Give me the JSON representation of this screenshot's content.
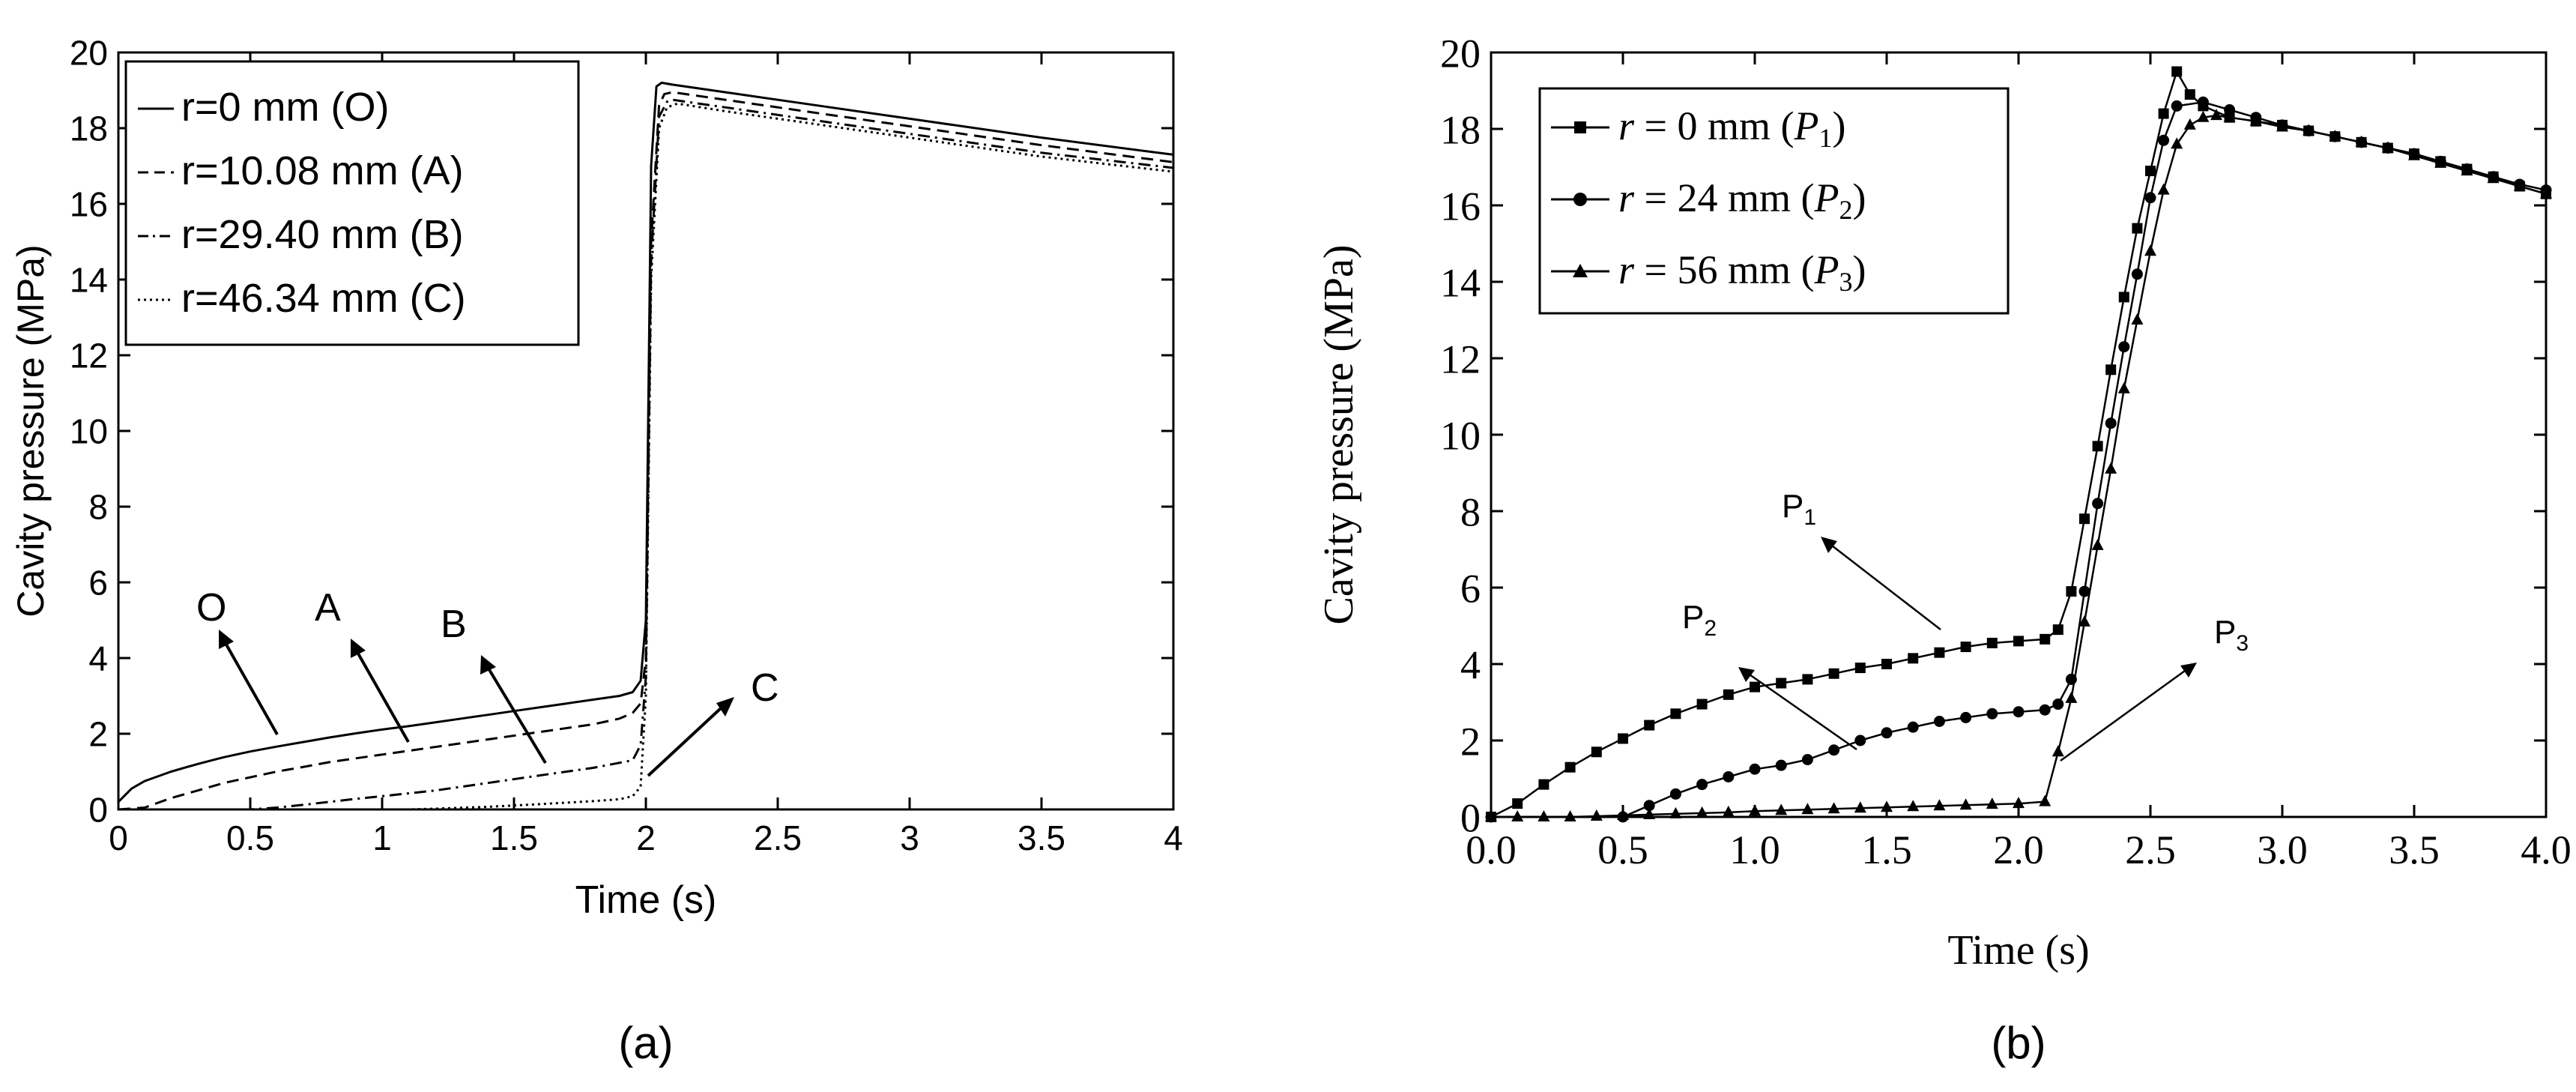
{
  "chart_data": [
    {
      "type": "line",
      "panel_label": "(a)",
      "xlabel": "Time (s)",
      "ylabel": "Cavity pressure (MPa)",
      "xlim": [
        0,
        4
      ],
      "ylim": [
        0,
        20
      ],
      "xtick_labels": [
        "0",
        "0.5",
        "1",
        "1.5",
        "2",
        "2.5",
        "3",
        "3.5",
        "4"
      ],
      "ytick_labels": [
        "0",
        "2",
        "4",
        "6",
        "8",
        "10",
        "12",
        "14",
        "16",
        "18",
        "20"
      ],
      "legend": [
        "r=0 mm (O)",
        "r=10.08 mm (A)",
        "r=29.40 mm (B)",
        "r=46.34 mm (C)"
      ],
      "legend_position": "top-left",
      "annotations": [
        "O",
        "A",
        "B",
        "C"
      ],
      "series": [
        {
          "name": "r=0 mm (O)",
          "style": "solid",
          "x": [
            0,
            0.05,
            0.1,
            0.2,
            0.3,
            0.4,
            0.5,
            0.6,
            0.7,
            0.8,
            0.9,
            1.0,
            1.1,
            1.2,
            1.3,
            1.4,
            1.5,
            1.6,
            1.7,
            1.8,
            1.9,
            1.95,
            1.98,
            2.0,
            2.02,
            2.04,
            2.06,
            2.1,
            2.3,
            2.6,
            3.0,
            3.5,
            4.0
          ],
          "y": [
            0.2,
            0.55,
            0.75,
            1.0,
            1.2,
            1.38,
            1.53,
            1.66,
            1.78,
            1.9,
            2.01,
            2.11,
            2.2,
            2.3,
            2.4,
            2.5,
            2.6,
            2.7,
            2.8,
            2.9,
            3.0,
            3.1,
            3.4,
            5.0,
            17.0,
            19.1,
            19.2,
            19.15,
            18.95,
            18.65,
            18.25,
            17.75,
            17.3
          ]
        },
        {
          "name": "r=10.08 mm (A)",
          "style": "dashed",
          "x": [
            0,
            0.1,
            0.2,
            0.3,
            0.4,
            0.5,
            0.6,
            0.7,
            0.8,
            0.9,
            1.0,
            1.2,
            1.4,
            1.6,
            1.8,
            1.9,
            1.95,
            1.98,
            2.0,
            2.02,
            2.05,
            2.07,
            2.1,
            2.3,
            2.6,
            3.0,
            3.5,
            4.0
          ],
          "y": [
            0.0,
            0.05,
            0.3,
            0.5,
            0.7,
            0.85,
            1.0,
            1.12,
            1.25,
            1.35,
            1.45,
            1.65,
            1.85,
            2.05,
            2.25,
            2.4,
            2.55,
            2.8,
            4.0,
            15.0,
            18.6,
            18.9,
            18.95,
            18.75,
            18.45,
            18.05,
            17.55,
            17.1
          ]
        },
        {
          "name": "r=29.40 mm (B)",
          "style": "dashdot",
          "x": [
            0,
            0.5,
            0.6,
            0.7,
            0.8,
            0.9,
            1.0,
            1.2,
            1.4,
            1.6,
            1.8,
            1.95,
            1.98,
            2.0,
            2.02,
            2.05,
            2.08,
            2.1,
            2.3,
            2.6,
            3.0,
            3.5,
            4.0
          ],
          "y": [
            0.0,
            0.0,
            0.05,
            0.12,
            0.2,
            0.28,
            0.35,
            0.5,
            0.7,
            0.9,
            1.1,
            1.3,
            1.7,
            3.5,
            14.5,
            18.3,
            18.7,
            18.75,
            18.55,
            18.25,
            17.85,
            17.35,
            16.95
          ]
        },
        {
          "name": "r=46.34 mm (C)",
          "style": "dotted",
          "x": [
            0,
            1.1,
            1.2,
            1.4,
            1.6,
            1.8,
            1.9,
            1.95,
            1.98,
            2.0,
            2.02,
            2.05,
            2.08,
            2.12,
            2.3,
            2.6,
            3.0,
            3.5,
            4.0
          ],
          "y": [
            0.0,
            0.0,
            0.02,
            0.07,
            0.14,
            0.22,
            0.27,
            0.35,
            0.6,
            3.0,
            14.0,
            18.0,
            18.55,
            18.65,
            18.45,
            18.15,
            17.75,
            17.25,
            16.85
          ]
        }
      ]
    },
    {
      "type": "line",
      "panel_label": "(b)",
      "xlabel": "Time (s)",
      "ylabel": "Cavity pressure (MPa)",
      "xlim": [
        0,
        4
      ],
      "ylim": [
        0,
        20
      ],
      "xtick_labels": [
        "0.0",
        "0.5",
        "1.0",
        "1.5",
        "2.0",
        "2.5",
        "3.0",
        "3.5",
        "4.0"
      ],
      "ytick_labels": [
        "0",
        "2",
        "4",
        "6",
        "8",
        "10",
        "12",
        "14",
        "16",
        "18",
        "20"
      ],
      "legend_position": "top-left",
      "legend": [
        {
          "pre": "r",
          "mid": " = 0 mm (",
          "p": "P",
          "sub": "1",
          "post": ")"
        },
        {
          "pre": "r",
          "mid": " = 24 mm (",
          "p": "P",
          "sub": "2",
          "post": ")"
        },
        {
          "pre": "r",
          "mid": " = 56 mm (",
          "p": "P",
          "sub": "3",
          "post": ")"
        }
      ],
      "annotations": [
        {
          "p": "P",
          "sub": "1"
        },
        {
          "p": "P",
          "sub": "2"
        },
        {
          "p": "P",
          "sub": "3"
        }
      ],
      "series": [
        {
          "name": "r = 0 mm (P1)",
          "marker": "square",
          "x": [
            0,
            0.1,
            0.2,
            0.3,
            0.4,
            0.5,
            0.6,
            0.7,
            0.8,
            0.9,
            1.0,
            1.1,
            1.2,
            1.3,
            1.4,
            1.5,
            1.6,
            1.7,
            1.8,
            1.9,
            2.0,
            2.1,
            2.15,
            2.2,
            2.25,
            2.3,
            2.35,
            2.4,
            2.45,
            2.5,
            2.55,
            2.6,
            2.65,
            2.7,
            2.8,
            2.9,
            3.0,
            3.1,
            3.2,
            3.3,
            3.4,
            3.5,
            3.6,
            3.7,
            3.8,
            3.9,
            4.0
          ],
          "y": [
            0.0,
            0.35,
            0.85,
            1.3,
            1.7,
            2.05,
            2.4,
            2.7,
            2.95,
            3.2,
            3.4,
            3.5,
            3.6,
            3.75,
            3.9,
            4.0,
            4.15,
            4.3,
            4.45,
            4.55,
            4.6,
            4.65,
            4.9,
            5.9,
            7.8,
            9.7,
            11.7,
            13.6,
            15.4,
            16.9,
            18.4,
            19.5,
            18.9,
            18.6,
            18.3,
            18.2,
            18.1,
            17.95,
            17.8,
            17.65,
            17.5,
            17.35,
            17.15,
            16.95,
            16.75,
            16.5,
            16.3
          ]
        },
        {
          "name": "r = 24 mm (P2)",
          "marker": "circle",
          "x": [
            0,
            0.5,
            0.6,
            0.7,
            0.8,
            0.9,
            1.0,
            1.1,
            1.2,
            1.3,
            1.4,
            1.5,
            1.6,
            1.7,
            1.8,
            1.9,
            2.0,
            2.1,
            2.15,
            2.2,
            2.25,
            2.3,
            2.35,
            2.4,
            2.45,
            2.5,
            2.55,
            2.6,
            2.7,
            2.8,
            2.9,
            3.0,
            3.1,
            3.2,
            3.3,
            3.4,
            3.5,
            3.6,
            3.7,
            3.8,
            3.9,
            4.0
          ],
          "y": [
            0.0,
            0.0,
            0.3,
            0.6,
            0.85,
            1.05,
            1.25,
            1.35,
            1.5,
            1.75,
            2.0,
            2.2,
            2.35,
            2.5,
            2.6,
            2.7,
            2.75,
            2.8,
            2.95,
            3.6,
            5.9,
            8.2,
            10.3,
            12.3,
            14.2,
            16.2,
            17.7,
            18.6,
            18.7,
            18.5,
            18.3,
            18.1,
            17.95,
            17.8,
            17.65,
            17.5,
            17.35,
            17.15,
            16.95,
            16.75,
            16.55,
            16.4
          ]
        },
        {
          "name": "r = 56 mm (P3)",
          "marker": "triangle",
          "x": [
            0,
            0.1,
            0.2,
            0.3,
            0.4,
            0.5,
            0.6,
            0.7,
            0.8,
            0.9,
            1.0,
            1.1,
            1.2,
            1.3,
            1.4,
            1.5,
            1.6,
            1.7,
            1.8,
            1.9,
            2.0,
            2.1,
            2.15,
            2.2,
            2.25,
            2.3,
            2.35,
            2.4,
            2.45,
            2.5,
            2.55,
            2.6,
            2.65,
            2.7,
            2.75,
            2.8,
            2.9,
            3.0,
            3.1,
            3.2,
            3.3,
            3.4,
            3.5,
            3.6,
            3.7,
            3.8,
            3.9,
            4.0
          ],
          "y": [
            0.0,
            0.0,
            0.0,
            0.0,
            0.02,
            0.04,
            0.06,
            0.08,
            0.1,
            0.12,
            0.15,
            0.17,
            0.19,
            0.21,
            0.23,
            0.25,
            0.27,
            0.29,
            0.31,
            0.33,
            0.35,
            0.4,
            1.7,
            3.1,
            5.1,
            7.1,
            9.1,
            11.2,
            13.0,
            14.8,
            16.4,
            17.6,
            18.1,
            18.3,
            18.35,
            18.3,
            18.2,
            18.05,
            17.95,
            17.8,
            17.65,
            17.5,
            17.3,
            17.1,
            16.9,
            16.7,
            16.5,
            16.3
          ]
        }
      ]
    }
  ]
}
